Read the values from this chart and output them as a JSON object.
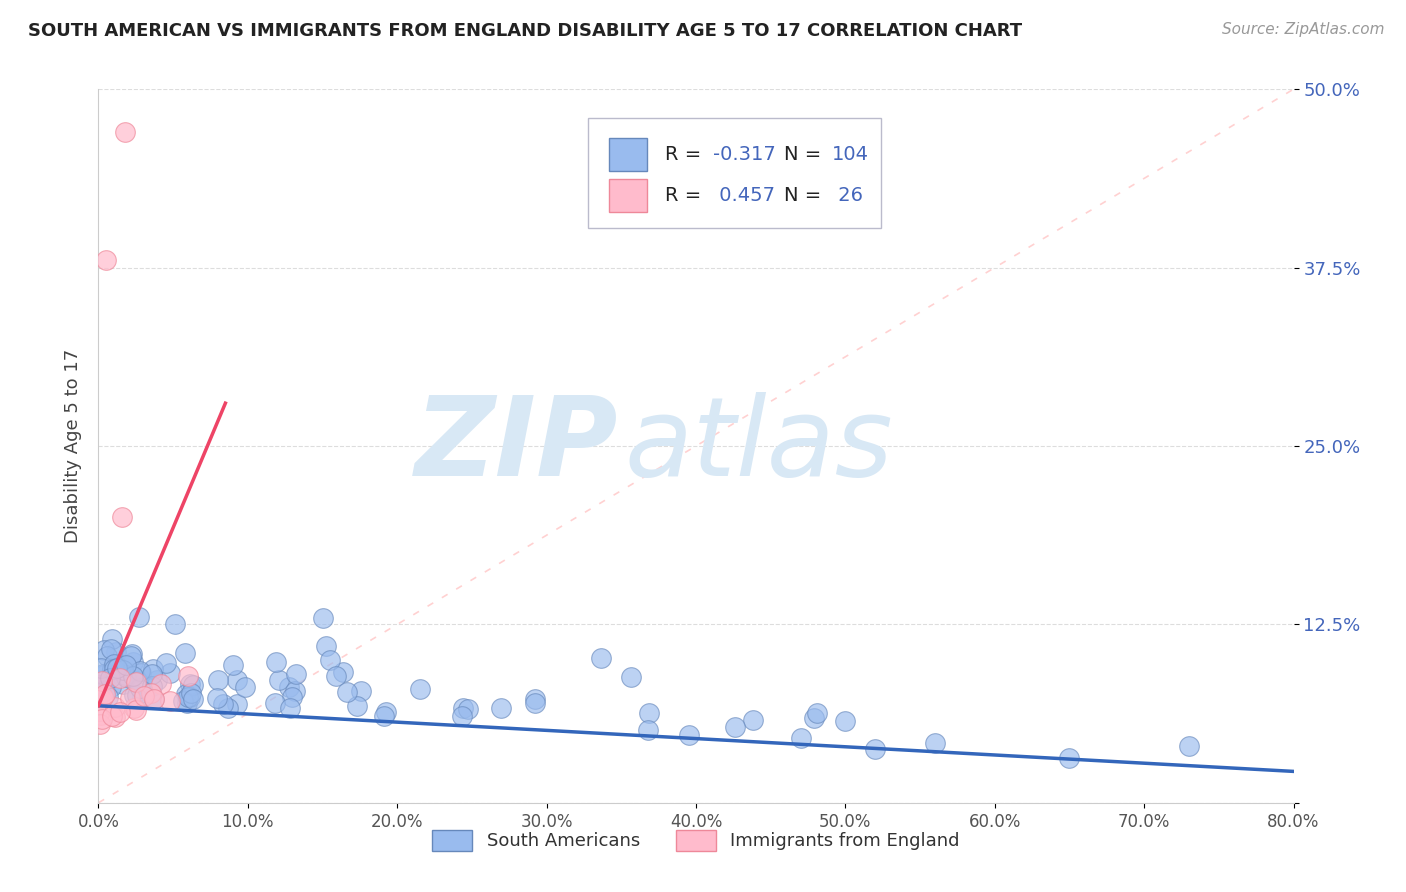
{
  "title": "SOUTH AMERICAN VS IMMIGRANTS FROM ENGLAND DISABILITY AGE 5 TO 17 CORRELATION CHART",
  "source": "Source: ZipAtlas.com",
  "ylabel": "Disability Age 5 to 17",
  "xlim": [
    0.0,
    0.8
  ],
  "ylim": [
    0.0,
    0.5
  ],
  "yticks": [
    0.0,
    0.125,
    0.25,
    0.375,
    0.5
  ],
  "ytick_labels": [
    "",
    "12.5%",
    "25.0%",
    "37.5%",
    "50.0%"
  ],
  "xticks": [
    0.0,
    0.1,
    0.2,
    0.3,
    0.4,
    0.5,
    0.6,
    0.7,
    0.8
  ],
  "xtick_labels": [
    "0.0%",
    "10.0%",
    "20.0%",
    "30.0%",
    "40.0%",
    "50.0%",
    "60.0%",
    "70.0%",
    "80.0%"
  ],
  "blue_R": -0.317,
  "blue_N": 104,
  "pink_R": 0.457,
  "pink_N": 26,
  "blue_color": "#99BBEE",
  "pink_color": "#FFBBCC",
  "blue_edge_color": "#6688BB",
  "pink_edge_color": "#EE8899",
  "blue_line_color": "#3366BB",
  "pink_line_color": "#EE4466",
  "diag_line_color": "#FFCCCC",
  "tick_color": "#4466BB",
  "title_color": "#222222",
  "source_color": "#999999",
  "grid_color": "#DDDDDD",
  "label_color": "#444444",
  "watermark_zip_color": "#D8E8F5",
  "watermark_atlas_color": "#D8E8F5"
}
